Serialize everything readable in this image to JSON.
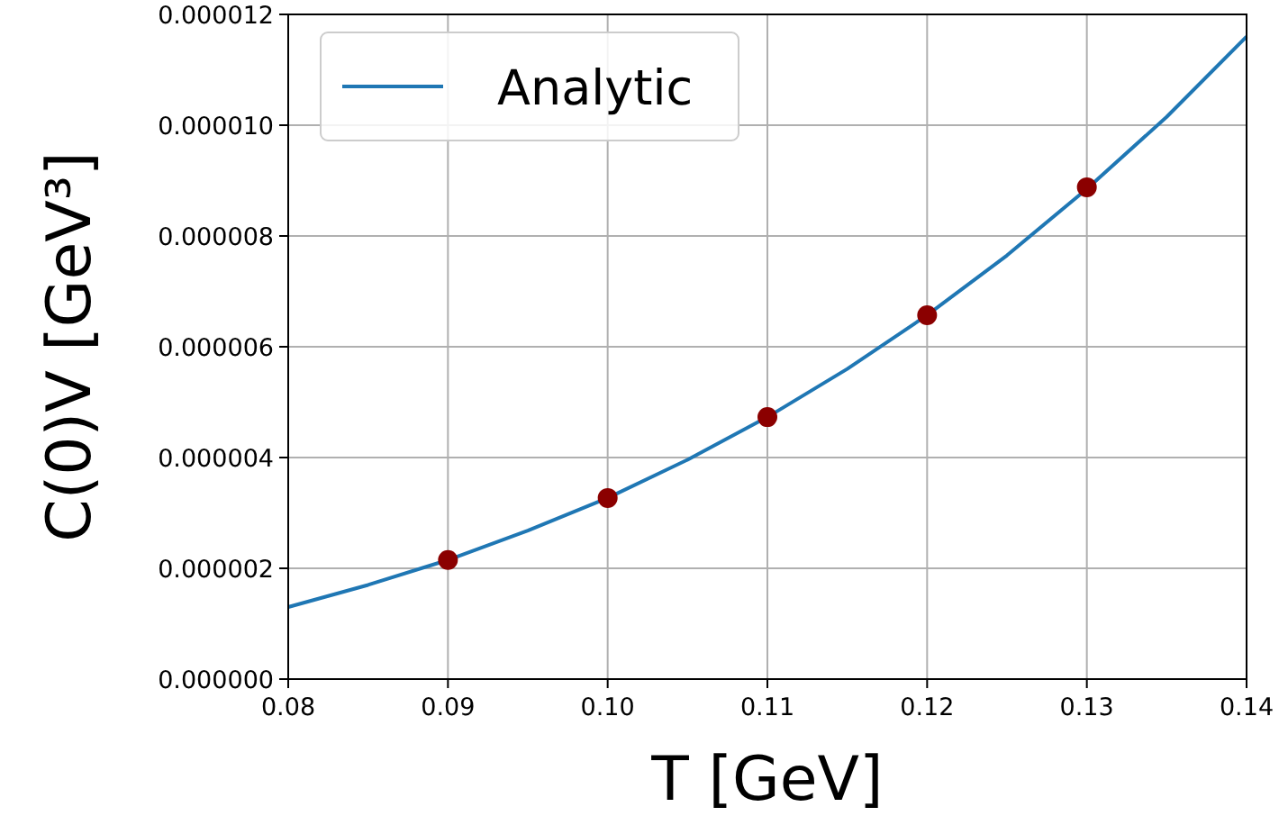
{
  "chart_data": {
    "type": "line",
    "xlabel": "T [GeV]",
    "ylabel": "C(0)V [GeV³]",
    "xlim": [
      0.08,
      0.14
    ],
    "ylim": [
      0,
      1.2e-05
    ],
    "xticks": [
      {
        "value": 0.08,
        "label": "0.08"
      },
      {
        "value": 0.09,
        "label": "0.09"
      },
      {
        "value": 0.1,
        "label": "0.10"
      },
      {
        "value": 0.11,
        "label": "0.11"
      },
      {
        "value": 0.12,
        "label": "0.12"
      },
      {
        "value": 0.13,
        "label": "0.13"
      },
      {
        "value": 0.14,
        "label": "0.14"
      }
    ],
    "yticks": [
      {
        "value": 0,
        "label": "0.000000"
      },
      {
        "value": 2e-06,
        "label": "0.000002"
      },
      {
        "value": 4e-06,
        "label": "0.000004"
      },
      {
        "value": 6e-06,
        "label": "0.000006"
      },
      {
        "value": 8e-06,
        "label": "0.000008"
      },
      {
        "value": 1e-05,
        "label": "0.000010"
      },
      {
        "value": 1.2e-05,
        "label": "0.000012"
      }
    ],
    "grid": true,
    "legend": "top left",
    "series": [
      {
        "name": "Analytic",
        "color": "#1f77b4",
        "marker": "none",
        "x": [
          0.08,
          0.085,
          0.09,
          0.095,
          0.1,
          0.105,
          0.11,
          0.115,
          0.12,
          0.125,
          0.13,
          0.135,
          0.14
        ],
        "values": [
          1.3e-06,
          1.7e-06,
          2.15e-06,
          2.68e-06,
          3.27e-06,
          3.96e-06,
          4.73e-06,
          5.6e-06,
          6.57e-06,
          7.65e-06,
          8.85e-06,
          1.015e-05,
          1.16e-05
        ]
      },
      {
        "type": "scatter",
        "color": "#8b0000",
        "marker": "circle",
        "x": [
          0.09,
          0.1,
          0.11,
          0.12,
          0.13
        ],
        "values": [
          2.15e-06,
          3.27e-06,
          4.73e-06,
          6.57e-06,
          8.88e-06
        ]
      }
    ]
  }
}
